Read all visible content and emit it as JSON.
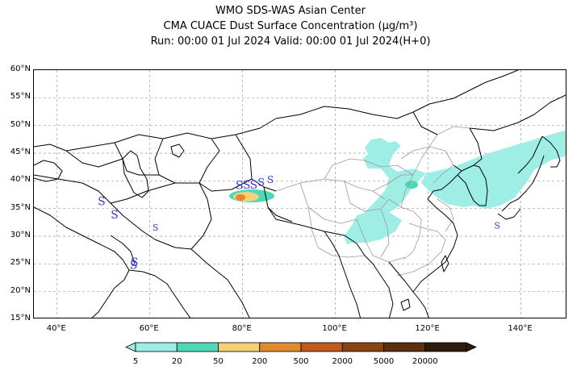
{
  "title": {
    "line1": "WMO SDS-WAS Asian Center",
    "line2": "CMA CUACE Dust Surface Concentration (μg/m³)",
    "line3": "Run: 00:00 01 Jul 2024    Valid: 00:00 01 Jul 2024(H+0)"
  },
  "map": {
    "lon_range": [
      35,
      150
    ],
    "lat_range": [
      15,
      60
    ],
    "lat_ticks": [
      {
        "value": 60,
        "label": "60°N"
      },
      {
        "value": 55,
        "label": "55°N"
      },
      {
        "value": 50,
        "label": "50°N"
      },
      {
        "value": 45,
        "label": "45°N"
      },
      {
        "value": 40,
        "label": "40°N"
      },
      {
        "value": 35,
        "label": "35°N"
      },
      {
        "value": 30,
        "label": "30°N"
      },
      {
        "value": 25,
        "label": "25°N"
      },
      {
        "value": 20,
        "label": "20°N"
      },
      {
        "value": 15,
        "label": "15°N"
      }
    ],
    "lon_ticks": [
      {
        "value": 40,
        "label": "40°E"
      },
      {
        "value": 60,
        "label": "60°E"
      },
      {
        "value": 80,
        "label": "80°E"
      },
      {
        "value": 100,
        "label": "100°E"
      },
      {
        "value": 120,
        "label": "120°E"
      },
      {
        "value": 140,
        "label": "140°E"
      }
    ],
    "gridline_style": "dashed",
    "dust_station_symbol": "S",
    "dust_station_color": "#3a3ad0",
    "colors": {
      "coast": "#000000",
      "border": "#000000",
      "china_province": "#9a9a9a",
      "grid": "#9a9a9a"
    }
  },
  "colorbar": {
    "labels": [
      "5",
      "20",
      "50",
      "200",
      "500",
      "2000",
      "5000",
      "20000"
    ],
    "colors": [
      "#9eeee6",
      "#4ed8b8",
      "#f4d07a",
      "#e08a30",
      "#bf5a1a",
      "#8a4410",
      "#5a3010",
      "#2e1a08"
    ],
    "extend": "both"
  }
}
